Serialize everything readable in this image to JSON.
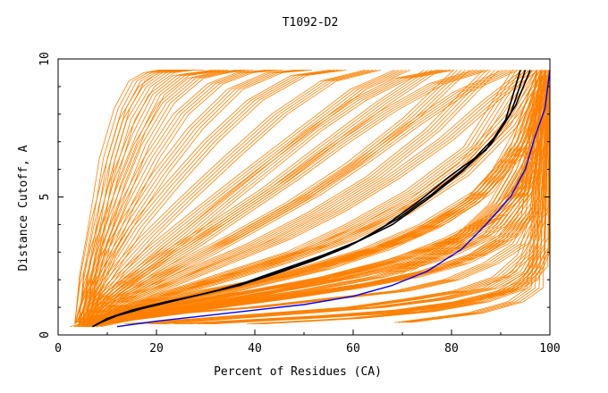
{
  "chart_data": {
    "type": "line",
    "title": "T1092-D2",
    "xlabel": "Percent of Residues (CA)",
    "ylabel": "Distance Cutoff, A",
    "xlim": [
      0,
      100
    ],
    "ylim": [
      0,
      10
    ],
    "x_ticks": [
      0,
      20,
      40,
      60,
      80,
      100
    ],
    "y_ticks": [
      0,
      5,
      10
    ],
    "grid": false,
    "colors": {
      "background_curves": "#ff8000",
      "highlight_black": "#000000",
      "highlight_blue": "#0000ff"
    },
    "background_curves": [
      {
        "x": [
          4,
          10,
          20,
          35,
          50,
          65,
          75,
          85,
          92,
          96,
          99
        ],
        "y": [
          0.3,
          0.6,
          0.9,
          1.2,
          1.5,
          1.9,
          2.3,
          2.9,
          3.6,
          4.5,
          9.6
        ]
      },
      {
        "x": [
          5,
          12,
          25,
          40,
          55,
          70,
          80,
          88,
          94,
          98,
          100
        ],
        "y": [
          0.3,
          0.5,
          0.8,
          1.0,
          1.3,
          1.6,
          2.0,
          2.6,
          3.3,
          4.6,
          9.6
        ]
      },
      {
        "x": [
          6,
          14,
          28,
          45,
          60,
          72,
          82,
          90,
          95,
          99
        ],
        "y": [
          0.3,
          0.6,
          0.9,
          1.3,
          1.7,
          2.1,
          2.6,
          3.3,
          4.3,
          9.6
        ]
      },
      {
        "x": [
          7,
          18,
          30,
          48,
          62,
          75,
          85,
          92,
          97,
          100
        ],
        "y": [
          0.3,
          0.7,
          1.0,
          1.4,
          1.8,
          2.3,
          2.9,
          3.7,
          5.0,
          9.6
        ]
      },
      {
        "x": [
          8,
          20,
          35,
          50,
          65,
          78,
          88,
          95,
          100
        ],
        "y": [
          0.4,
          0.8,
          1.2,
          1.6,
          2.1,
          2.8,
          3.6,
          5.2,
          9.6
        ]
      },
      {
        "x": [
          5,
          10,
          18,
          30,
          45,
          60,
          72,
          84,
          93,
          99
        ],
        "y": [
          0.3,
          0.7,
          1.1,
          1.6,
          2.1,
          2.8,
          3.6,
          4.8,
          6.5,
          9.6
        ]
      },
      {
        "x": [
          6,
          12,
          22,
          35,
          50,
          63,
          75,
          86,
          95,
          100
        ],
        "y": [
          0.3,
          0.7,
          1.2,
          1.7,
          2.4,
          3.1,
          4.0,
          5.2,
          7.0,
          9.6
        ]
      },
      {
        "x": [
          5,
          10,
          20,
          32,
          45,
          58,
          70,
          82,
          92,
          98
        ],
        "y": [
          0.3,
          0.8,
          1.3,
          1.9,
          2.6,
          3.4,
          4.4,
          5.8,
          7.6,
          9.6
        ]
      },
      {
        "x": [
          6,
          12,
          22,
          34,
          48,
          60,
          72,
          84,
          94
        ],
        "y": [
          0.4,
          0.9,
          1.5,
          2.2,
          3.0,
          4.0,
          5.2,
          6.8,
          9.6
        ]
      },
      {
        "x": [
          5,
          10,
          18,
          28,
          40,
          52,
          64,
          76,
          88
        ],
        "y": [
          0.4,
          1.0,
          1.6,
          2.4,
          3.3,
          4.4,
          5.7,
          7.4,
          9.6
        ]
      },
      {
        "x": [
          5,
          9,
          16,
          25,
          36,
          48,
          60,
          72,
          82
        ],
        "y": [
          0.4,
          1.0,
          1.7,
          2.6,
          3.6,
          4.8,
          6.2,
          7.9,
          9.6
        ]
      },
      {
        "x": [
          5,
          8,
          14,
          22,
          32,
          43,
          54,
          66,
          76
        ],
        "y": [
          0.4,
          1.1,
          1.9,
          2.9,
          4.0,
          5.3,
          6.8,
          8.4,
          9.6
        ]
      },
      {
        "x": [
          5,
          8,
          13,
          20,
          29,
          39,
          50,
          61,
          70
        ],
        "y": [
          0.4,
          1.2,
          2.1,
          3.2,
          4.5,
          5.9,
          7.4,
          8.9,
          9.6
        ]
      },
      {
        "x": [
          5,
          8,
          12,
          18,
          26,
          35,
          45,
          55,
          64
        ],
        "y": [
          0.4,
          1.3,
          2.3,
          3.5,
          4.9,
          6.4,
          8.0,
          9.2,
          9.6
        ]
      },
      {
        "x": [
          5,
          7,
          11,
          16,
          23,
          31,
          40,
          49,
          57
        ],
        "y": [
          0.4,
          1.4,
          2.5,
          3.9,
          5.4,
          7.0,
          8.5,
          9.4,
          9.6
        ]
      },
      {
        "x": [
          5,
          7,
          10,
          15,
          21,
          28,
          36,
          44,
          50
        ],
        "y": [
          0.4,
          1.5,
          2.8,
          4.3,
          5.9,
          7.5,
          8.9,
          9.5,
          9.6
        ]
      },
      {
        "x": [
          5,
          7,
          10,
          14,
          19,
          25,
          32,
          38,
          44
        ],
        "y": [
          0.4,
          1.6,
          3.0,
          4.7,
          6.4,
          8.0,
          9.1,
          9.5,
          9.6
        ]
      },
      {
        "x": [
          5,
          7,
          9,
          13,
          17,
          22,
          28,
          33,
          38
        ],
        "y": [
          0.4,
          1.7,
          3.3,
          5.1,
          6.9,
          8.4,
          9.3,
          9.5,
          9.6
        ]
      },
      {
        "x": [
          5,
          6,
          9,
          12,
          16,
          20,
          25,
          29,
          33
        ],
        "y": [
          0.4,
          1.8,
          3.6,
          5.5,
          7.3,
          8.7,
          9.4,
          9.5,
          9.6
        ]
      },
      {
        "x": [
          5,
          6,
          8,
          11,
          14,
          18,
          22,
          26,
          28
        ],
        "y": [
          0.4,
          2.0,
          3.9,
          6.0,
          7.8,
          9.0,
          9.5,
          9.6,
          9.6
        ]
      },
      {
        "x": [
          5,
          6,
          8,
          10,
          13,
          16,
          19,
          22,
          24
        ],
        "y": [
          0.4,
          2.2,
          4.2,
          6.4,
          8.2,
          9.2,
          9.5,
          9.6,
          9.6
        ]
      },
      {
        "x": [
          10,
          20,
          30,
          40,
          50,
          60,
          70,
          80,
          90,
          97,
          100
        ],
        "y": [
          0.6,
          1.0,
          1.3,
          1.6,
          1.9,
          2.3,
          2.8,
          3.5,
          4.4,
          6.0,
          9.6
        ]
      },
      {
        "x": [
          10,
          22,
          35,
          48,
          60,
          72,
          82,
          90,
          96,
          100
        ],
        "y": [
          0.5,
          0.9,
          1.3,
          1.7,
          2.1,
          2.6,
          3.2,
          4.0,
          5.5,
          9.6
        ]
      },
      {
        "x": [
          9,
          18,
          30,
          42,
          55,
          68,
          78,
          87,
          94,
          99
        ],
        "y": [
          0.5,
          1.0,
          1.5,
          2.0,
          2.6,
          3.3,
          4.1,
          5.2,
          7.0,
          9.6
        ]
      },
      {
        "x": [
          8,
          16,
          26,
          38,
          50,
          62,
          73,
          83,
          92,
          98
        ],
        "y": [
          0.5,
          1.1,
          1.7,
          2.3,
          3.0,
          3.9,
          4.9,
          6.2,
          8.0,
          9.6
        ]
      },
      {
        "x": [
          7,
          14,
          24,
          35,
          46,
          57,
          68,
          79,
          88,
          96
        ],
        "y": [
          0.5,
          1.2,
          1.9,
          2.7,
          3.5,
          4.5,
          5.7,
          7.1,
          8.5,
          9.6
        ]
      },
      {
        "x": [
          7,
          13,
          21,
          31,
          41,
          52,
          62,
          72,
          82,
          92
        ],
        "y": [
          0.5,
          1.3,
          2.1,
          3.0,
          4.0,
          5.1,
          6.3,
          7.6,
          8.8,
          9.6
        ]
      },
      {
        "x": [
          6,
          12,
          19,
          28,
          37,
          47,
          57,
          67,
          77,
          86
        ],
        "y": [
          0.5,
          1.4,
          2.3,
          3.3,
          4.4,
          5.6,
          6.9,
          8.1,
          9.1,
          9.6
        ]
      },
      {
        "x": [
          6,
          11,
          18,
          26,
          34,
          43,
          52,
          61,
          70,
          79
        ],
        "y": [
          0.5,
          1.5,
          2.5,
          3.6,
          4.8,
          6.1,
          7.4,
          8.5,
          9.3,
          9.6
        ]
      },
      {
        "x": [
          15,
          30,
          45,
          60,
          72,
          82,
          90,
          95,
          98,
          100
        ],
        "y": [
          0.4,
          0.6,
          0.8,
          1.0,
          1.3,
          1.6,
          2.1,
          2.9,
          4.5,
          9.6
        ]
      },
      {
        "x": [
          20,
          35,
          50,
          65,
          78,
          88,
          94,
          98,
          100
        ],
        "y": [
          0.4,
          0.6,
          0.8,
          1.0,
          1.3,
          1.7,
          2.3,
          3.5,
          9.6
        ]
      },
      {
        "x": [
          25,
          40,
          55,
          70,
          82,
          91,
          96,
          99,
          100
        ],
        "y": [
          0.4,
          0.55,
          0.7,
          0.9,
          1.2,
          1.6,
          2.2,
          3.2,
          9.6
        ]
      },
      {
        "x": [
          30,
          50,
          68,
          80,
          90,
          96,
          99,
          100
        ],
        "y": [
          0.4,
          0.6,
          0.8,
          1.1,
          1.5,
          2.0,
          3.0,
          9.6
        ]
      },
      {
        "x": [
          40,
          60,
          75,
          86,
          94,
          98,
          100
        ],
        "y": [
          0.4,
          0.6,
          0.85,
          1.2,
          1.7,
          2.5,
          9.6
        ]
      },
      {
        "x": [
          70,
          85,
          93,
          97,
          100
        ],
        "y": [
          0.45,
          0.8,
          1.2,
          1.7,
          9.6
        ]
      },
      {
        "x": [
          12,
          25,
          40,
          55,
          68,
          80,
          88,
          94,
          98,
          100
        ],
        "y": [
          0.6,
          1.1,
          1.6,
          2.1,
          2.7,
          3.4,
          4.2,
          5.2,
          6.8,
          9.6
        ]
      },
      {
        "x": [
          14,
          28,
          42,
          56,
          68,
          78,
          86,
          92,
          97,
          100
        ],
        "y": [
          0.6,
          1.0,
          1.5,
          2.0,
          2.6,
          3.2,
          4.0,
          5.0,
          6.5,
          9.6
        ]
      },
      {
        "x": [
          13,
          26,
          40,
          54,
          66,
          76,
          84,
          90,
          95,
          99
        ],
        "y": [
          0.6,
          1.2,
          1.8,
          2.4,
          3.1,
          3.9,
          4.8,
          6.0,
          7.6,
          9.6
        ]
      },
      {
        "x": [
          70,
          78,
          84,
          90,
          94,
          97,
          99,
          100
        ],
        "y": [
          2.3,
          3.0,
          3.8,
          4.8,
          6.0,
          7.4,
          8.6,
          9.6
        ]
      },
      {
        "x": [
          68,
          76,
          83,
          89,
          93,
          96,
          98,
          99
        ],
        "y": [
          2.2,
          2.9,
          3.7,
          4.7,
          5.9,
          7.2,
          8.5,
          9.6
        ]
      }
    ],
    "highlight_curves": [
      {
        "color": "#000000",
        "x": [
          7,
          10,
          15,
          22,
          30,
          37,
          45,
          53,
          60,
          68,
          75,
          82,
          88,
          92,
          95
        ],
        "y": [
          0.3,
          0.6,
          0.9,
          1.2,
          1.5,
          1.8,
          2.3,
          2.8,
          3.3,
          4.0,
          4.9,
          5.9,
          6.9,
          8.0,
          9.6
        ]
      },
      {
        "color": "#000000",
        "x": [
          8,
          12,
          18,
          25,
          32,
          38,
          46,
          54,
          61,
          69,
          76,
          83,
          89,
          93,
          96
        ],
        "y": [
          0.4,
          0.7,
          1.0,
          1.3,
          1.6,
          1.9,
          2.4,
          2.9,
          3.4,
          4.2,
          5.1,
          6.1,
          7.2,
          8.3,
          9.6
        ]
      },
      {
        "color": "#000000",
        "x": [
          7,
          11,
          17,
          24,
          31,
          37,
          44,
          52,
          59,
          66,
          73,
          80,
          87,
          91,
          94
        ],
        "y": [
          0.3,
          0.65,
          0.95,
          1.25,
          1.55,
          1.8,
          2.2,
          2.7,
          3.2,
          3.9,
          4.8,
          5.8,
          6.7,
          7.8,
          9.6
        ]
      },
      {
        "color": "#0000ff",
        "x": [
          12,
          20,
          30,
          40,
          50,
          60,
          68,
          75,
          82,
          87,
          92,
          95,
          97,
          99,
          100
        ],
        "y": [
          0.3,
          0.5,
          0.7,
          0.9,
          1.1,
          1.4,
          1.8,
          2.3,
          3.1,
          4.0,
          5.0,
          6.0,
          7.2,
          8.2,
          9.6
        ]
      }
    ]
  }
}
